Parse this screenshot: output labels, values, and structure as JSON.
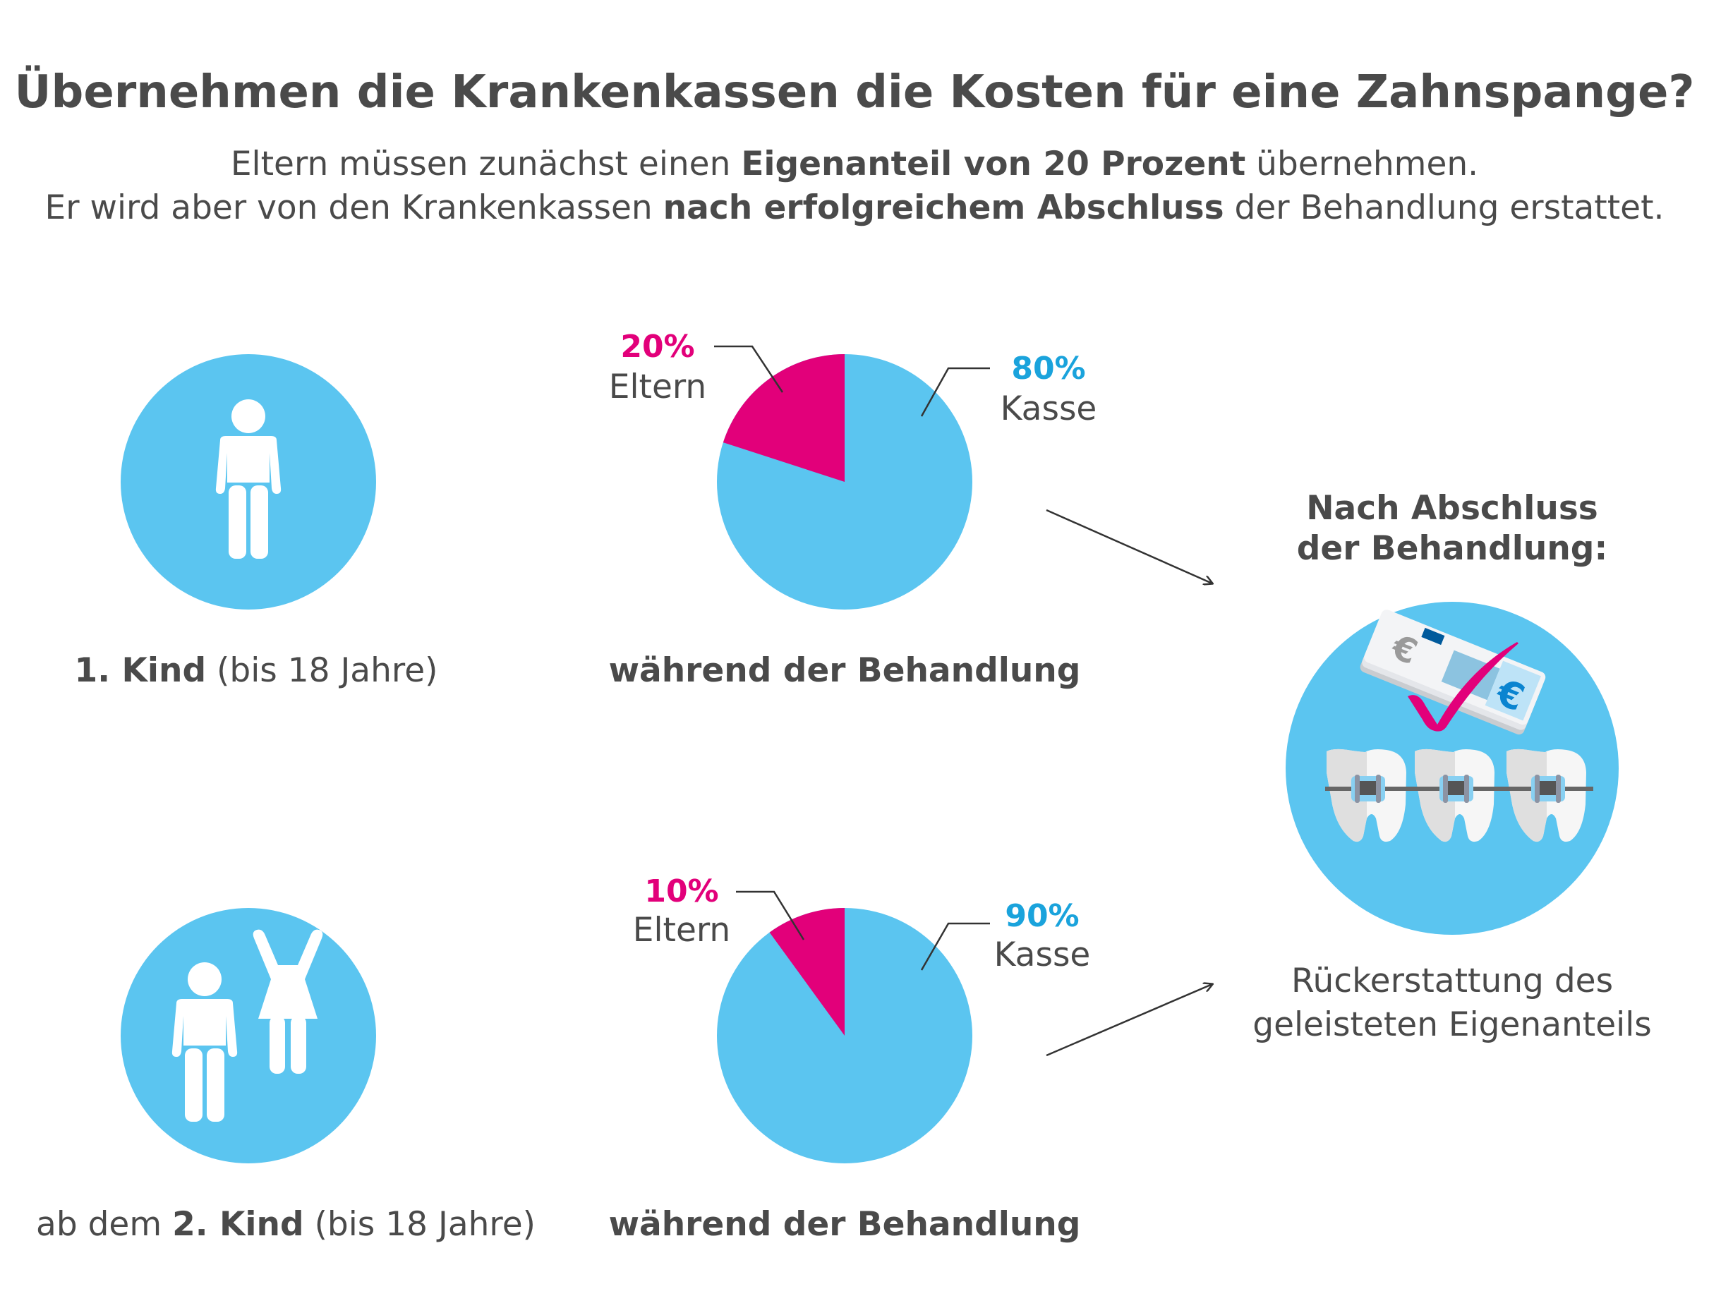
{
  "title": "Übernehmen die Krankenkassen die Kosten für eine Zahnspange?",
  "subtitle": {
    "line1_a": "Eltern müssen zunächst einen ",
    "line1_b": "Eigenanteil von 20 Prozent",
    "line1_c": " übernehmen.",
    "line2_a": "Er wird aber von den Krankenkassen ",
    "line2_b": "nach erfolgreichem Abschluss",
    "line2_c": " der Behandlung erstattet."
  },
  "colors": {
    "blue": "#5bc5f0",
    "magenta": "#e2007a",
    "blue_text": "#1aa3dc",
    "text": "#4a4a4a"
  },
  "rows": [
    {
      "icon": "child-icon",
      "caption_pre": "",
      "caption_bold": "1. Kind",
      "caption_post": " (bis 18 Jahre)",
      "pie": {
        "eltern_pct": 20,
        "kasse_pct": 80,
        "eltern_value": "20%",
        "eltern_label": "Eltern",
        "kasse_value": "80%",
        "kasse_label": "Kasse"
      },
      "pie_caption": "während der Behandlung"
    },
    {
      "icon": "two-children-icon",
      "caption_pre": "ab dem ",
      "caption_bold": "2. Kind",
      "caption_post": " (bis 18 Jahre)",
      "pie": {
        "eltern_pct": 10,
        "kasse_pct": 90,
        "eltern_value": "10%",
        "eltern_label": "Eltern",
        "kasse_value": "90%",
        "kasse_label": "Kasse"
      },
      "pie_caption": "während der Behandlung"
    }
  ],
  "result": {
    "heading1": "Nach Abschluss",
    "heading2": "der Behandlung:",
    "icon": "money-braces-check-icon",
    "caption1": "Rückerstattung des",
    "caption2": "geleisteten Eigenanteils"
  }
}
